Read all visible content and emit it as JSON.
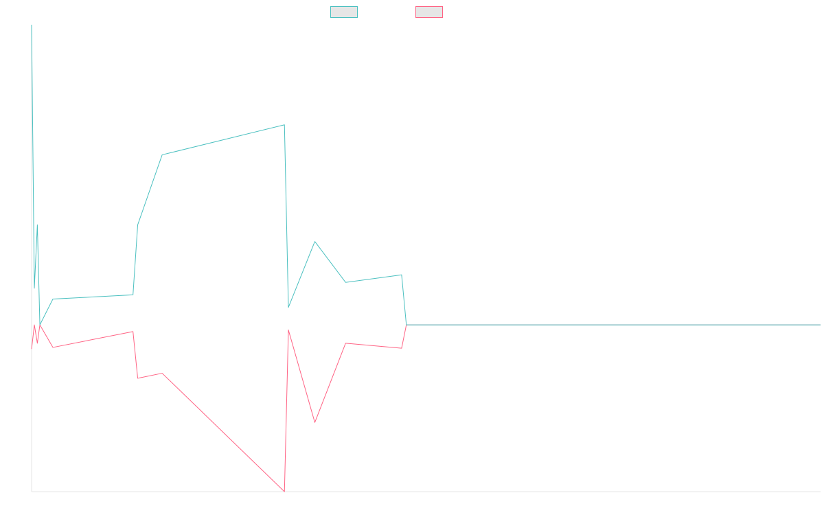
{
  "chart_data": {
    "type": "line",
    "xlim": [
      0,
      1
    ],
    "ylim": [
      -1,
      1.8
    ],
    "grid": false,
    "legend": {
      "placement": "top-center"
    },
    "series": [
      {
        "name": "",
        "color": "#4bc0c0",
        "fill": "#e6e6e6",
        "points": [
          [
            0.0,
            1.8
          ],
          [
            0.0035,
            0.22
          ],
          [
            0.0073,
            0.6
          ],
          [
            0.0105,
            0.0
          ],
          [
            0.027,
            0.155
          ],
          [
            0.1285,
            0.18
          ],
          [
            0.1345,
            0.6
          ],
          [
            0.1655,
            1.02
          ],
          [
            0.3205,
            1.2
          ],
          [
            0.3255,
            0.105
          ],
          [
            0.359,
            0.5
          ],
          [
            0.398,
            0.255
          ],
          [
            0.469,
            0.3
          ],
          [
            0.475,
            0.0
          ],
          [
            1.0,
            0.0
          ]
        ]
      },
      {
        "name": "",
        "color": "#ff6384",
        "fill": "#e6e6e6",
        "points": [
          [
            0.0,
            -0.145
          ],
          [
            0.0035,
            0.0
          ],
          [
            0.0073,
            -0.11
          ],
          [
            0.0105,
            0.0
          ],
          [
            0.027,
            -0.135
          ],
          [
            0.1285,
            -0.04
          ],
          [
            0.1345,
            -0.32
          ],
          [
            0.1655,
            -0.29
          ],
          [
            0.3205,
            -1.0
          ],
          [
            0.3255,
            -0.03
          ],
          [
            0.359,
            -0.585
          ],
          [
            0.398,
            -0.11
          ],
          [
            0.469,
            -0.14
          ],
          [
            0.475,
            0.0
          ],
          [
            1.0,
            0.0
          ]
        ]
      }
    ]
  }
}
